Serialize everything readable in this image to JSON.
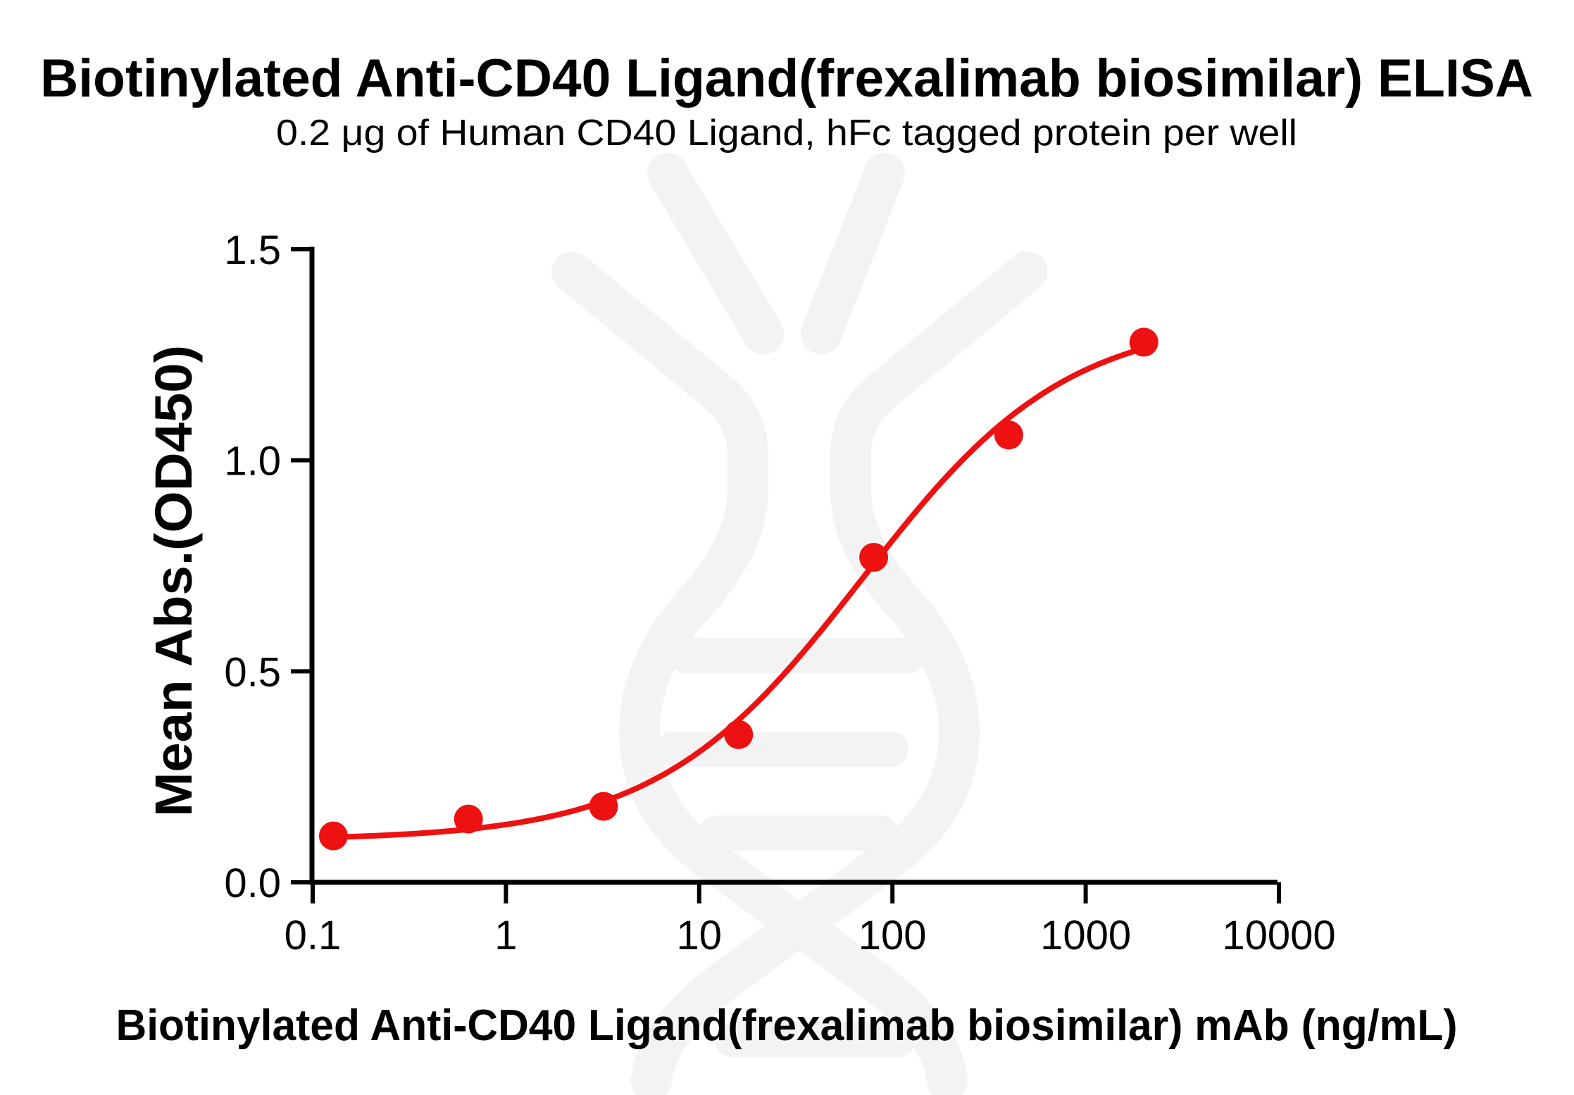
{
  "figure": {
    "title": "Biotinylated Anti-CD40 Ligand(frexalimab biosimilar) ELISA",
    "subtitle": "0.2 μg of Human CD40 Ligand, hFc tagged protein per well",
    "watermark_icon": "antibody-dna-helix-watermark"
  },
  "chart_data": {
    "type": "scatter",
    "title": "Biotinylated Anti-CD40 Ligand(frexalimab biosimilar) ELISA",
    "subtitle": "0.2 μg of Human CD40 Ligand, hFc tagged protein per well",
    "xlabel": "Biotinylated Anti-CD40 Ligand(frexalimab biosimilar) mAb (ng/mL)",
    "ylabel": "Mean Abs.(OD450)",
    "x_scale": "log10",
    "xlim": [
      0.1,
      10000
    ],
    "ylim": [
      0,
      1.5
    ],
    "x_ticks": [
      0.1,
      1,
      10,
      100,
      1000,
      10000
    ],
    "x_tick_labels": [
      "0.1",
      "1",
      "10",
      "100",
      "1000",
      "10000"
    ],
    "y_ticks": [
      0.0,
      0.5,
      1.0,
      1.5
    ],
    "y_tick_labels": [
      "0.0",
      "0.5",
      "1.0",
      "1.5"
    ],
    "grid": false,
    "legend": "none",
    "series": [
      {
        "name": "Biotinylated Anti-CD40 Ligand(frexalimab biosimilar) mAb",
        "marker": "circle",
        "color": "#ee1111",
        "points": [
          {
            "x": 0.128,
            "y": 0.11
          },
          {
            "x": 0.64,
            "y": 0.15
          },
          {
            "x": 3.2,
            "y": 0.18
          },
          {
            "x": 16,
            "y": 0.35
          },
          {
            "x": 80,
            "y": 0.77
          },
          {
            "x": 400,
            "y": 1.06
          },
          {
            "x": 2000,
            "y": 1.28
          }
        ],
        "fit": {
          "model": "4PL",
          "bottom": 0.1,
          "top": 1.34,
          "ec50": 70,
          "hill": 0.82,
          "x_min": 0.128,
          "x_max": 2000
        }
      }
    ]
  },
  "colors": {
    "curve": "#ee1111",
    "marker": "#ee1111",
    "axis": "#000000",
    "text": "#000000",
    "watermark": "#f3f3f3",
    "background": "#ffffff"
  }
}
